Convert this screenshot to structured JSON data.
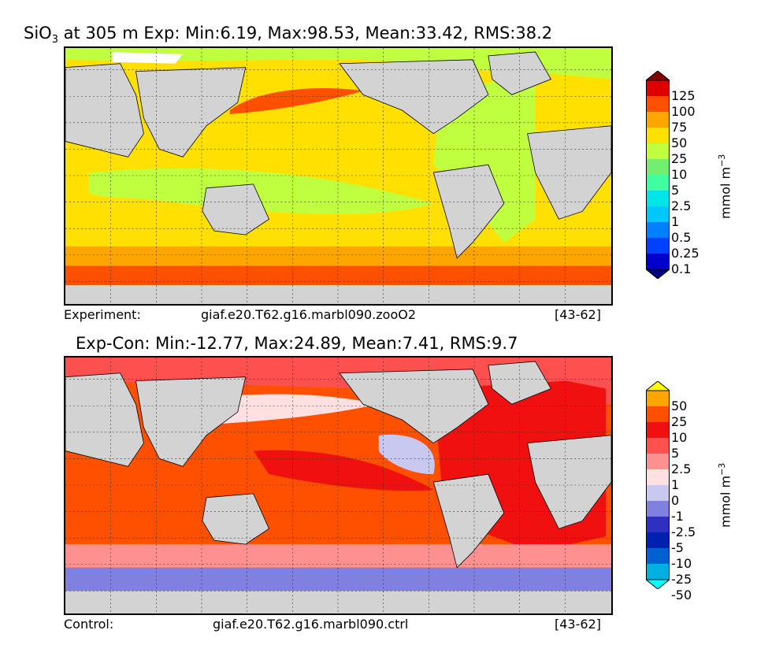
{
  "panel_top": {
    "title_prefix": "SiO",
    "title_sub": "3",
    "title_rest": " at 305 m Exp: Min:6.19, Max:98.53, Mean:33.42, RMS:38.2",
    "footer_label": "Experiment:",
    "footer_case": "giaf.e20.T62.g16.marbl090.zooO2",
    "footer_years": "[43-62]",
    "unit": "mmol m",
    "unit_exp": "−3",
    "colorbar": {
      "ticks": [
        "125",
        "100",
        "75",
        "50",
        "25",
        "10",
        "5",
        "2.5",
        "1",
        "0.5",
        "0.25",
        "0.1"
      ],
      "colors": [
        "#000080",
        "#0000cd",
        "#0040ff",
        "#0080ff",
        "#00c8ff",
        "#00e5e5",
        "#40ffa0",
        "#70f070",
        "#c0ff40",
        "#ffe000",
        "#ffa500",
        "#ff5000",
        "#e00000",
        "#800000"
      ]
    }
  },
  "panel_bottom": {
    "title": "Exp-Con: Min:-12.77, Max:24.89, Mean:7.41, RMS:9.7",
    "footer_label": "Control:",
    "footer_case": "giaf.e20.T62.g16.marbl090.ctrl",
    "footer_years": "[43-62]",
    "unit": "mmol m",
    "unit_exp": "−3",
    "colorbar": {
      "ticks": [
        "50",
        "25",
        "10",
        "5",
        "2.5",
        "1",
        "0",
        "-1",
        "-2.5",
        "-5",
        "-10",
        "-25",
        "-50"
      ],
      "colors": [
        "#00ffff",
        "#00b0e0",
        "#0060d0",
        "#0020b0",
        "#3030c0",
        "#8080e0",
        "#c8c8f0",
        "#ffe0e0",
        "#ff9090",
        "#ff5050",
        "#f01010",
        "#ff5000",
        "#ffa500",
        "#ffff00"
      ]
    }
  }
}
